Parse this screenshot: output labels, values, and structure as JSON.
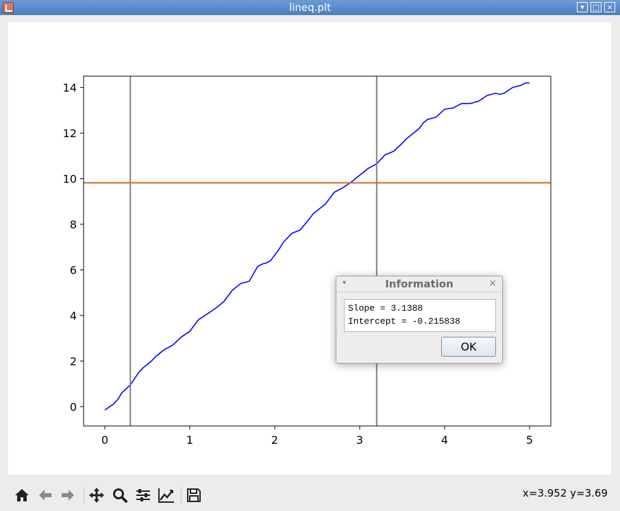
{
  "window": {
    "title": "lineq.plt",
    "buttons": [
      "▾",
      "□",
      "×"
    ]
  },
  "dialog": {
    "title": "Information",
    "message_line1": "Slope = 3.1388",
    "message_line2": "Intercept = -0.215838",
    "ok_label": "OK",
    "menu_icon": "▾",
    "close_icon": "×"
  },
  "toolbar": {
    "buttons": [
      "home-icon",
      "back-arrow-icon",
      "forward-arrow-icon",
      "pan-icon",
      "zoom-icon",
      "configure-subplots-icon",
      "edit-axis-icon",
      "save-icon"
    ],
    "coords": "x=3.952 y=3.69"
  },
  "chart_data": {
    "type": "line",
    "title": "",
    "xlabel": "",
    "ylabel": "",
    "xlim": [
      -0.25,
      5.25
    ],
    "ylim": [
      -0.85,
      14.5
    ],
    "xticks": [
      0,
      1,
      2,
      3,
      4,
      5
    ],
    "yticks": [
      0,
      2,
      4,
      6,
      8,
      10,
      12,
      14
    ],
    "grid": false,
    "series": [
      {
        "color": "#0000ff",
        "x": [
          0,
          0.1,
          0.15,
          0.2,
          0.3,
          0.4,
          0.45,
          0.5,
          0.55,
          0.6,
          0.7,
          0.8,
          0.9,
          1.0,
          1.1,
          1.2,
          1.3,
          1.4,
          1.5,
          1.6,
          1.7,
          1.8,
          1.85,
          1.9,
          1.95,
          2.0,
          2.05,
          2.1,
          2.2,
          2.3,
          2.4,
          2.45,
          2.5,
          2.6,
          2.7,
          2.8,
          2.9,
          3.0,
          3.1,
          3.2,
          3.3,
          3.4,
          3.5,
          3.55,
          3.6,
          3.7,
          3.75,
          3.8,
          3.9,
          4.0,
          4.1,
          4.2,
          4.3,
          4.4,
          4.5,
          4.6,
          4.65,
          4.7,
          4.8,
          4.9,
          4.95,
          5.0
        ],
        "y": [
          -0.15,
          0.1,
          0.3,
          0.6,
          0.95,
          1.5,
          1.7,
          1.85,
          2.0,
          2.2,
          2.5,
          2.7,
          3.05,
          3.3,
          3.8,
          4.05,
          4.3,
          4.6,
          5.1,
          5.4,
          5.5,
          6.15,
          6.25,
          6.3,
          6.4,
          6.65,
          6.9,
          7.2,
          7.6,
          7.75,
          8.2,
          8.45,
          8.6,
          8.9,
          9.4,
          9.6,
          9.85,
          10.15,
          10.45,
          10.65,
          11.05,
          11.2,
          11.55,
          11.75,
          11.9,
          12.2,
          12.45,
          12.6,
          12.7,
          13.05,
          13.1,
          13.3,
          13.3,
          13.4,
          13.65,
          13.75,
          13.7,
          13.75,
          14.0,
          14.1,
          14.2,
          14.2
        ]
      }
    ],
    "vlines": [
      {
        "x": 0.3,
        "color": "#808080"
      },
      {
        "x": 3.2,
        "color": "#808080"
      }
    ],
    "hlines": [
      {
        "y": 9.82,
        "color": "#d2691e"
      }
    ]
  }
}
